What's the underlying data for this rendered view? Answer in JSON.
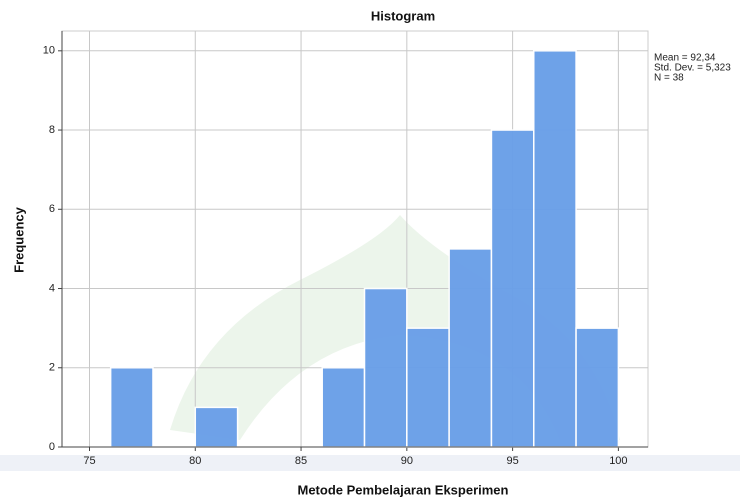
{
  "chart_data": {
    "type": "histogram",
    "title": "Histogram",
    "x_label": "Metode Pembelajaran Eksperimen",
    "y_label": "Frequency",
    "bins": [
      76,
      78,
      80,
      82,
      84,
      86,
      88,
      90,
      92,
      94,
      96,
      98,
      100
    ],
    "counts": [
      2,
      0,
      1,
      0,
      0,
      2,
      4,
      3,
      5,
      8,
      10,
      3
    ],
    "color": "#6a9fe8",
    "xlim": [
      73.7,
      101.4
    ],
    "ylim": [
      0,
      10.5
    ],
    "xticks": [
      75,
      80,
      85,
      90,
      95,
      100
    ],
    "yticks": [
      0,
      2,
      4,
      6,
      8,
      10
    ],
    "grid": true,
    "annotations": [
      "Mean = 92,34",
      "Std. Dev. = 5,323",
      "N = 38"
    ]
  }
}
